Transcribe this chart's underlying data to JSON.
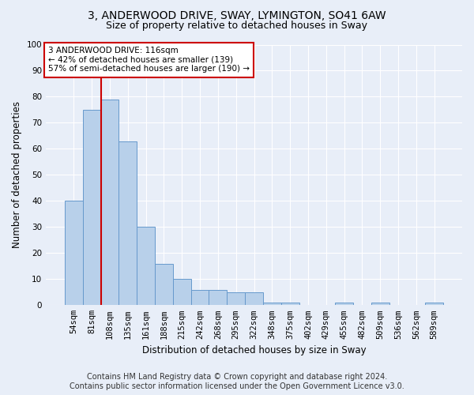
{
  "title": "3, ANDERWOOD DRIVE, SWAY, LYMINGTON, SO41 6AW",
  "subtitle": "Size of property relative to detached houses in Sway",
  "xlabel": "Distribution of detached houses by size in Sway",
  "ylabel": "Number of detached properties",
  "categories": [
    "54sqm",
    "81sqm",
    "108sqm",
    "135sqm",
    "161sqm",
    "188sqm",
    "215sqm",
    "242sqm",
    "268sqm",
    "295sqm",
    "322sqm",
    "348sqm",
    "375sqm",
    "402sqm",
    "429sqm",
    "455sqm",
    "482sqm",
    "509sqm",
    "536sqm",
    "562sqm",
    "589sqm"
  ],
  "values": [
    40,
    75,
    79,
    63,
    30,
    16,
    10,
    6,
    6,
    5,
    5,
    1,
    1,
    0,
    0,
    1,
    0,
    1,
    0,
    0,
    1
  ],
  "bar_color": "#b8d0ea",
  "bar_edge_color": "#6699cc",
  "vline_x": 1.5,
  "vline_color": "#cc0000",
  "annotation_text": "3 ANDERWOOD DRIVE: 116sqm\n← 42% of detached houses are smaller (139)\n57% of semi-detached houses are larger (190) →",
  "annotation_box_color": "#ffffff",
  "annotation_box_edge_color": "#cc0000",
  "ylim": [
    0,
    100
  ],
  "yticks": [
    0,
    10,
    20,
    30,
    40,
    50,
    60,
    70,
    80,
    90,
    100
  ],
  "footer_line1": "Contains HM Land Registry data © Crown copyright and database right 2024.",
  "footer_line2": "Contains public sector information licensed under the Open Government Licence v3.0.",
  "bg_color": "#e8eef8",
  "plot_bg_color": "#e8eef8",
  "grid_color": "#ffffff",
  "title_fontsize": 10,
  "subtitle_fontsize": 9,
  "footer_fontsize": 7,
  "axis_label_fontsize": 8.5,
  "tick_fontsize": 7.5,
  "annotation_fontsize": 7.5
}
